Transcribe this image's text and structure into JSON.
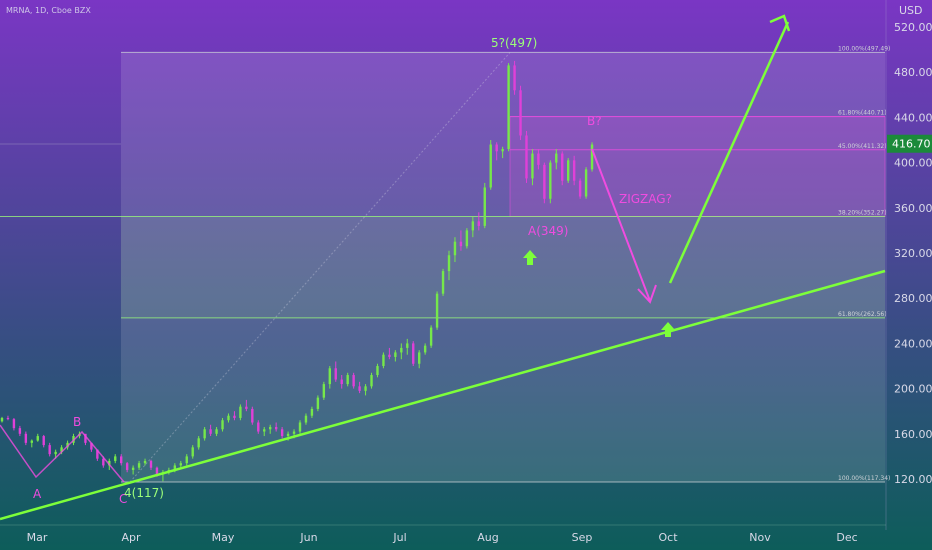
{
  "header": {
    "symbol": "MRNA, 1D, Cboe BZX"
  },
  "price_badge": "416.70",
  "axis_currency": "USD",
  "colors": {
    "up": "#76e84a",
    "down": "#e040d8",
    "line": "#7dff3a",
    "magenta": "#f04ce0",
    "bg_top": "#7a36c4",
    "bg_bottom": "#0d5d5a"
  },
  "chart_data": {
    "type": "candlestick",
    "y_ticks": [
      "520.00",
      "480.00",
      "440.00",
      "400.00",
      "360.00",
      "320.00",
      "280.00",
      "240.00",
      "200.00",
      "160.00",
      "120.00"
    ],
    "x_ticks": [
      "Mar",
      "Apr",
      "May",
      "Jun",
      "Jul",
      "Aug",
      "Sep",
      "Oct",
      "Nov",
      "Dec"
    ],
    "last_price": 416.7,
    "fib_levels": [
      {
        "label": "100.00%(497.49)",
        "value": 497.49
      },
      {
        "label": "61.80%(440.71)",
        "value": 440.71
      },
      {
        "label": "45.00%(411.32)",
        "value": 411.32
      },
      {
        "label": "38.20%(352.27)",
        "value": 352.27
      },
      {
        "label": "61.80%(262.56)",
        "value": 262.56
      },
      {
        "label": "100.00%(117.34)",
        "value": 117.34
      }
    ],
    "annotations": [
      {
        "text": "5?(497)",
        "kind": "green"
      },
      {
        "text": "A(349)",
        "kind": "magenta"
      },
      {
        "text": "B?",
        "kind": "magenta"
      },
      {
        "text": "ZIGZAG?",
        "kind": "magenta"
      },
      {
        "text": "A",
        "kind": "magenta"
      },
      {
        "text": "B",
        "kind": "magenta"
      },
      {
        "text": "C",
        "kind": "magenta"
      },
      {
        "text": "4(117)",
        "kind": "green"
      }
    ],
    "candles": [
      [
        0,
        171,
        175,
        170,
        174
      ],
      [
        2,
        174,
        176,
        172,
        173
      ],
      [
        4,
        173,
        174,
        163,
        165
      ],
      [
        6,
        165,
        167,
        158,
        160
      ],
      [
        8,
        160,
        162,
        150,
        152
      ],
      [
        10,
        152,
        155,
        148,
        154
      ],
      [
        12,
        154,
        160,
        153,
        158
      ],
      [
        14,
        158,
        159,
        148,
        150
      ],
      [
        16,
        150,
        152,
        140,
        142
      ],
      [
        18,
        142,
        146,
        138,
        144
      ],
      [
        20,
        144,
        150,
        142,
        148
      ],
      [
        22,
        148,
        154,
        146,
        152
      ],
      [
        24,
        152,
        160,
        150,
        158
      ],
      [
        26,
        158,
        162,
        156,
        160
      ],
      [
        28,
        160,
        158,
        150,
        152
      ],
      [
        30,
        152,
        150,
        144,
        146
      ],
      [
        32,
        146,
        145,
        136,
        138
      ],
      [
        34,
        138,
        140,
        130,
        132
      ],
      [
        36,
        132,
        138,
        128,
        136
      ],
      [
        38,
        136,
        142,
        134,
        140
      ],
      [
        40,
        140,
        142,
        132,
        134
      ],
      [
        42,
        134,
        135,
        126,
        128
      ],
      [
        44,
        128,
        132,
        124,
        130
      ],
      [
        46,
        130,
        136,
        128,
        134
      ],
      [
        48,
        134,
        138,
        132,
        136
      ],
      [
        50,
        136,
        137,
        128,
        130
      ],
      [
        52,
        130,
        131,
        122,
        124
      ],
      [
        54,
        124,
        128,
        118,
        126
      ],
      [
        56,
        126,
        130,
        124,
        128
      ],
      [
        58,
        128,
        134,
        126,
        132
      ],
      [
        60,
        132,
        136,
        130,
        134
      ],
      [
        62,
        134,
        142,
        132,
        140
      ],
      [
        64,
        140,
        150,
        138,
        148
      ],
      [
        66,
        148,
        158,
        146,
        156
      ],
      [
        68,
        156,
        166,
        154,
        164
      ],
      [
        70,
        164,
        168,
        158,
        160
      ],
      [
        72,
        160,
        166,
        158,
        164
      ],
      [
        74,
        164,
        174,
        162,
        172
      ],
      [
        76,
        172,
        178,
        170,
        176
      ],
      [
        78,
        176,
        180,
        172,
        174
      ],
      [
        80,
        174,
        186,
        172,
        184
      ],
      [
        82,
        184,
        190,
        180,
        182
      ],
      [
        84,
        182,
        184,
        168,
        170
      ],
      [
        86,
        170,
        172,
        160,
        162
      ],
      [
        88,
        162,
        166,
        158,
        164
      ],
      [
        90,
        164,
        168,
        160,
        166
      ],
      [
        92,
        166,
        170,
        162,
        164
      ],
      [
        94,
        164,
        166,
        156,
        158
      ],
      [
        96,
        158,
        162,
        154,
        160
      ],
      [
        98,
        160,
        164,
        156,
        162
      ],
      [
        100,
        162,
        172,
        160,
        170
      ],
      [
        102,
        170,
        178,
        168,
        176
      ],
      [
        104,
        176,
        184,
        174,
        182
      ],
      [
        106,
        182,
        194,
        180,
        192
      ],
      [
        108,
        192,
        206,
        190,
        204
      ],
      [
        110,
        204,
        220,
        200,
        218
      ],
      [
        112,
        218,
        224,
        206,
        208
      ],
      [
        114,
        208,
        212,
        200,
        204
      ],
      [
        116,
        204,
        214,
        202,
        212
      ],
      [
        118,
        212,
        214,
        200,
        202
      ],
      [
        120,
        202,
        206,
        196,
        198
      ],
      [
        122,
        198,
        204,
        194,
        202
      ],
      [
        124,
        202,
        214,
        200,
        212
      ],
      [
        126,
        212,
        222,
        210,
        220
      ],
      [
        128,
        220,
        232,
        218,
        230
      ],
      [
        130,
        230,
        236,
        226,
        228
      ],
      [
        132,
        228,
        234,
        224,
        232
      ],
      [
        134,
        232,
        240,
        226,
        236
      ],
      [
        136,
        236,
        244,
        230,
        240
      ],
      [
        138,
        240,
        242,
        220,
        222
      ],
      [
        140,
        222,
        234,
        218,
        232
      ],
      [
        142,
        232,
        240,
        230,
        238
      ],
      [
        144,
        238,
        256,
        236,
        254
      ],
      [
        146,
        254,
        286,
        252,
        284
      ],
      [
        148,
        284,
        306,
        282,
        304
      ],
      [
        150,
        304,
        322,
        296,
        318
      ],
      [
        152,
        318,
        334,
        312,
        330
      ],
      [
        154,
        330,
        340,
        322,
        326
      ],
      [
        156,
        326,
        342,
        324,
        340
      ],
      [
        158,
        340,
        352,
        334,
        348
      ],
      [
        160,
        348,
        356,
        340,
        344
      ],
      [
        162,
        344,
        382,
        342,
        378
      ],
      [
        164,
        378,
        420,
        376,
        416
      ],
      [
        166,
        416,
        418,
        402,
        410
      ],
      [
        168,
        410,
        414,
        404,
        412
      ],
      [
        170,
        412,
        488,
        410,
        486
      ],
      [
        172,
        486,
        490,
        460,
        464
      ],
      [
        174,
        464,
        468,
        420,
        424
      ],
      [
        176,
        424,
        428,
        382,
        386
      ],
      [
        178,
        386,
        412,
        380,
        408
      ],
      [
        180,
        408,
        412,
        394,
        398
      ],
      [
        182,
        398,
        400,
        364,
        368
      ],
      [
        184,
        368,
        402,
        364,
        400
      ],
      [
        186,
        400,
        412,
        394,
        408
      ],
      [
        188,
        408,
        410,
        380,
        384
      ],
      [
        190,
        384,
        404,
        382,
        402
      ],
      [
        192,
        402,
        406,
        380,
        384
      ],
      [
        194,
        384,
        386,
        368,
        370
      ],
      [
        196,
        370,
        396,
        368,
        394
      ],
      [
        198,
        394,
        418,
        392,
        416
      ]
    ],
    "projection": [
      {
        "from": "B?",
        "to": "target",
        "value": 275
      },
      {
        "from": "target",
        "to": "up",
        "value": 540
      }
    ]
  }
}
